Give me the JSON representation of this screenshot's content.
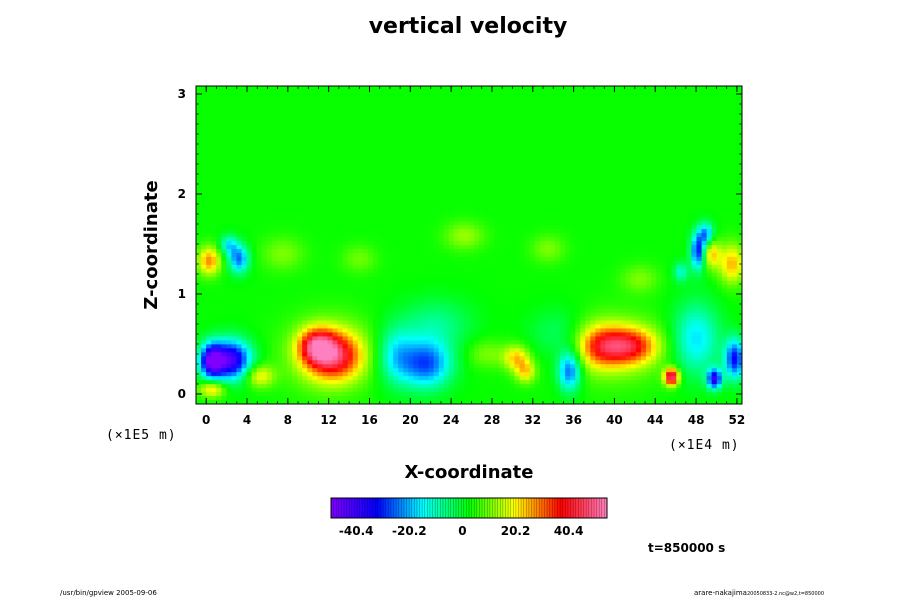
{
  "chart_data": {
    "type": "heatmap",
    "title": "vertical velocity",
    "xlabel": "X-coordinate",
    "ylabel": "Z-coordinate",
    "x_scale_label": "(×1E4 m)",
    "y_scale_label": "(×1E5 m)",
    "x_ticks": [
      "0",
      "4",
      "8",
      "12",
      "16",
      "20",
      "24",
      "28",
      "32",
      "36",
      "40",
      "44",
      "48",
      "52"
    ],
    "y_ticks": [
      "0",
      "1",
      "2",
      "3"
    ],
    "xlim": [
      -1,
      52.5
    ],
    "ylim": [
      -0.1,
      3.08
    ],
    "colorbar": {
      "range": [
        -50,
        55
      ],
      "ticks": [
        "-40.4",
        "-20.2",
        "0",
        "20.2",
        "40.4"
      ],
      "colors": [
        "#8000ff",
        "#0000ff",
        "#00ffff",
        "#00ff00",
        "#ffff00",
        "#ff0000",
        "#ff80c0"
      ]
    },
    "background_value": 3,
    "features": [
      {
        "x": 0.5,
        "z": 0.33,
        "sx": 0.8,
        "sz": 0.12,
        "v": -42
      },
      {
        "x": 2.4,
        "z": 0.34,
        "sx": 1.4,
        "sz": 0.14,
        "v": -45
      },
      {
        "x": 0.6,
        "z": 0.05,
        "sx": 0.9,
        "sz": 0.06,
        "v": 22
      },
      {
        "x": 0.3,
        "z": 1.33,
        "sx": 0.8,
        "sz": 0.1,
        "v": 25
      },
      {
        "x": 2.2,
        "z": 1.49,
        "sx": 0.6,
        "sz": 0.07,
        "v": -18
      },
      {
        "x": 3.2,
        "z": 1.35,
        "sx": 0.7,
        "sz": 0.1,
        "v": -28
      },
      {
        "x": 5.2,
        "z": 0.18,
        "sx": 1.0,
        "sz": 0.08,
        "v": 18
      },
      {
        "x": 10.8,
        "z": 0.48,
        "sx": 1.2,
        "sz": 0.12,
        "v": 30
      },
      {
        "x": 12.5,
        "z": 0.38,
        "sx": 1.9,
        "sz": 0.17,
        "v": 33
      },
      {
        "x": 12.0,
        "z": 0.4,
        "sx": 3.0,
        "sz": 0.25,
        "v": 12
      },
      {
        "x": 7.5,
        "z": 1.4,
        "sx": 1.5,
        "sz": 0.12,
        "v": 8
      },
      {
        "x": 18.6,
        "z": 0.38,
        "sx": 1.3,
        "sz": 0.2,
        "v": -18
      },
      {
        "x": 21.6,
        "z": 0.3,
        "sx": 1.7,
        "sz": 0.17,
        "v": -30
      },
      {
        "x": 22.5,
        "z": 0.7,
        "sx": 2.5,
        "sz": 0.18,
        "v": -10
      },
      {
        "x": 25.3,
        "z": 1.58,
        "sx": 1.4,
        "sz": 0.1,
        "v": 10
      },
      {
        "x": 30.4,
        "z": 0.36,
        "sx": 0.9,
        "sz": 0.09,
        "v": 20
      },
      {
        "x": 31.3,
        "z": 0.22,
        "sx": 0.7,
        "sz": 0.08,
        "v": 18
      },
      {
        "x": 27.5,
        "z": 0.4,
        "sx": 1.4,
        "sz": 0.1,
        "v": 8
      },
      {
        "x": 35.6,
        "z": 0.23,
        "sx": 0.8,
        "sz": 0.14,
        "v": -30
      },
      {
        "x": 34.5,
        "z": 0.6,
        "sx": 2.0,
        "sz": 0.18,
        "v": -8
      },
      {
        "x": 38.5,
        "z": 0.48,
        "sx": 1.6,
        "sz": 0.15,
        "v": 22
      },
      {
        "x": 41.5,
        "z": 0.48,
        "sx": 1.9,
        "sz": 0.13,
        "v": 30
      },
      {
        "x": 40.0,
        "z": 0.45,
        "sx": 3.3,
        "sz": 0.25,
        "v": 10
      },
      {
        "x": 45.6,
        "z": 0.17,
        "sx": 0.5,
        "sz": 0.06,
        "v": 48
      },
      {
        "x": 48.0,
        "z": 0.55,
        "sx": 1.6,
        "sz": 0.25,
        "v": -20
      },
      {
        "x": 49.8,
        "z": 0.15,
        "sx": 0.5,
        "sz": 0.07,
        "v": -40
      },
      {
        "x": 51.8,
        "z": 0.35,
        "sx": 0.7,
        "sz": 0.14,
        "v": -35
      },
      {
        "x": 48.2,
        "z": 1.43,
        "sx": 0.5,
        "sz": 0.13,
        "v": -35
      },
      {
        "x": 49.0,
        "z": 1.6,
        "sx": 0.5,
        "sz": 0.08,
        "v": -25
      },
      {
        "x": 49.5,
        "z": 1.4,
        "sx": 0.6,
        "sz": 0.1,
        "v": 20
      },
      {
        "x": 51.5,
        "z": 1.3,
        "sx": 0.9,
        "sz": 0.14,
        "v": 22
      },
      {
        "x": 46.5,
        "z": 1.22,
        "sx": 0.5,
        "sz": 0.07,
        "v": -15
      },
      {
        "x": 15.0,
        "z": 1.35,
        "sx": 1.2,
        "sz": 0.1,
        "v": 7
      },
      {
        "x": 33.5,
        "z": 1.45,
        "sx": 1.2,
        "sz": 0.1,
        "v": 8
      },
      {
        "x": 42.5,
        "z": 1.15,
        "sx": 1.3,
        "sz": 0.1,
        "v": 8
      }
    ]
  },
  "time_label": "t=850000 s",
  "footer_left": "/usr/bin/gpview 2005-09-06",
  "footer_right": "arare-nakajima",
  "footer_right_small": "20050833-2.nc@w2,t=850000"
}
